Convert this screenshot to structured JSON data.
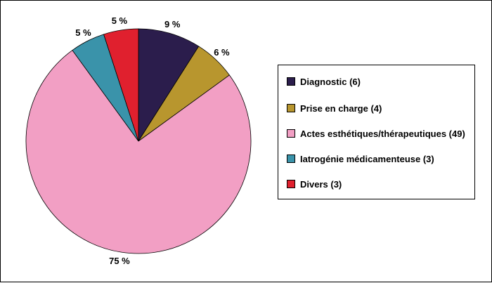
{
  "chart_data": {
    "type": "pie",
    "categories": [
      "Diagnostic (6)",
      "Prise en charge (4)",
      "Actes esthétiques/thérapeutiques (49)",
      "Iatrogénie médicamenteuse (3)",
      "Divers (3)"
    ],
    "values": [
      9,
      6,
      75,
      5,
      5
    ],
    "value_labels": [
      "9 %",
      "6 %",
      "75 %",
      "5 %",
      "5 %"
    ],
    "colors": [
      "#2b1d4c",
      "#b8962e",
      "#f29fc4",
      "#3a93aa",
      "#e0202e"
    ],
    "legend_position": "right"
  }
}
